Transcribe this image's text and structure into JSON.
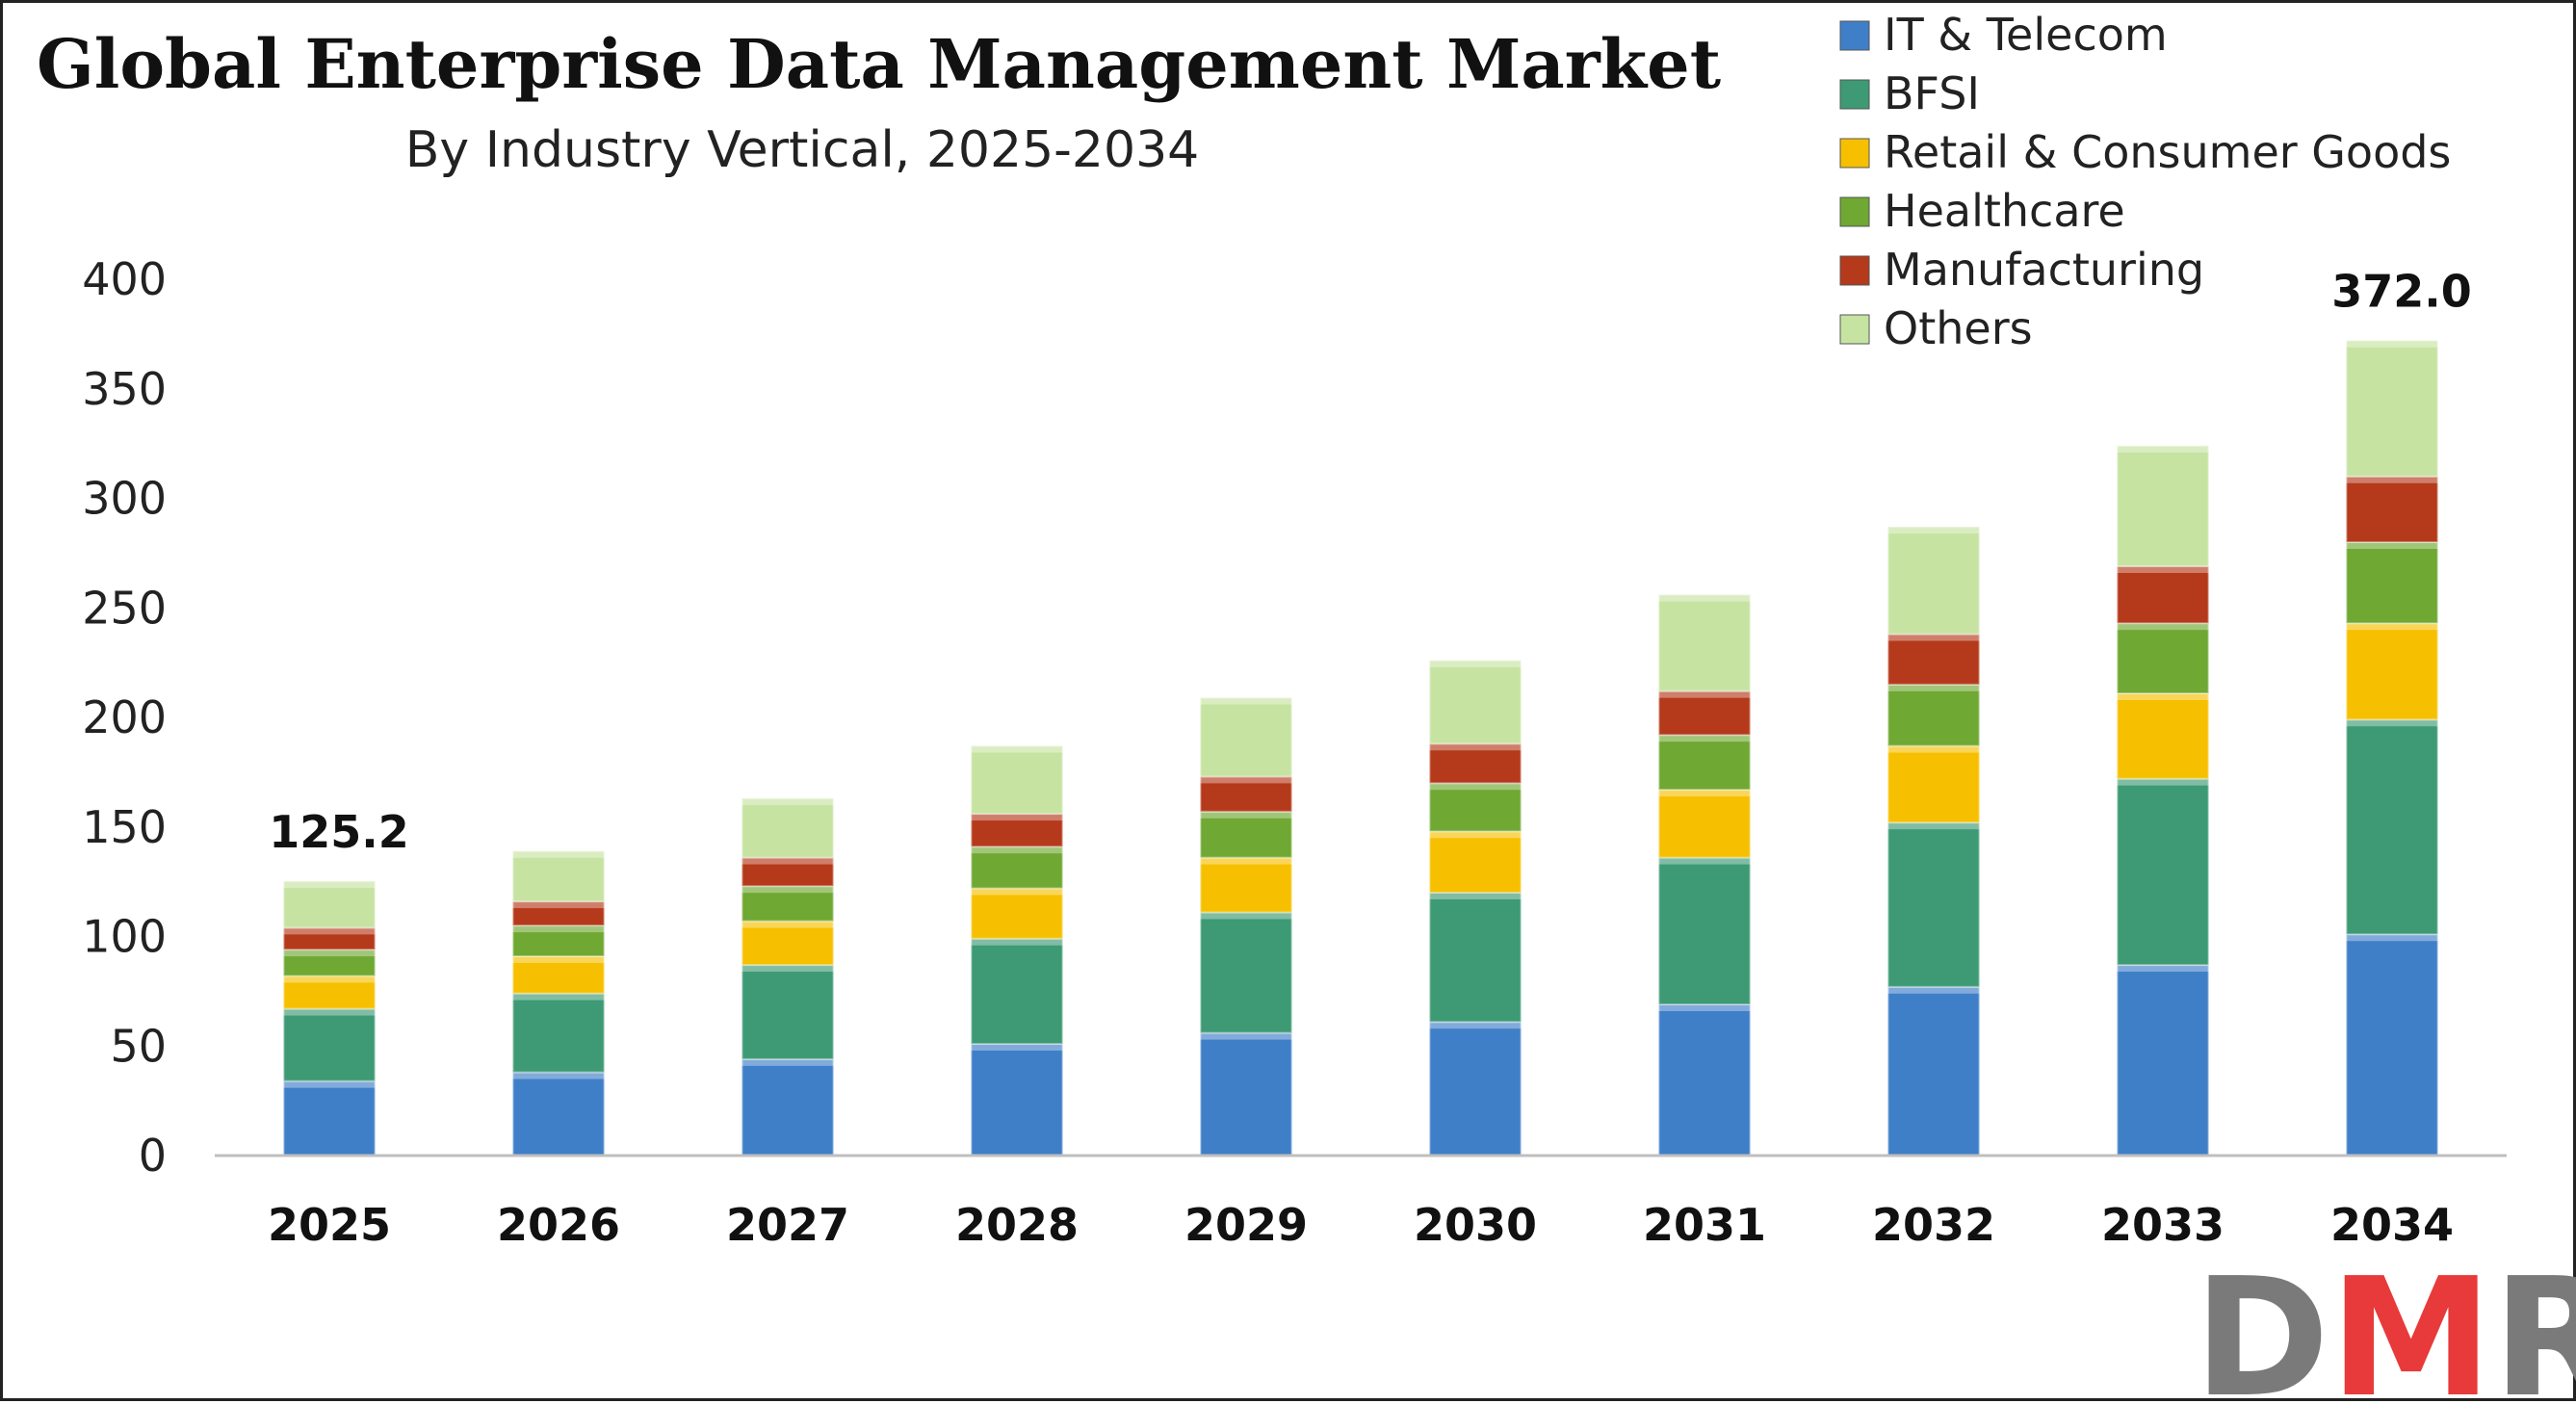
{
  "chart_data": {
    "type": "bar",
    "stacked": true,
    "title": "Global Enterprise Data Management Market",
    "subtitle": "By Industry Vertical, 2025-2034",
    "xlabel": "",
    "ylabel": "",
    "ylim": [
      0,
      400
    ],
    "yticks": [
      "0",
      "50",
      "100",
      "150",
      "200",
      "250",
      "300",
      "350",
      "400"
    ],
    "grid": false,
    "legend_position": "top-right",
    "categories": [
      "2025",
      "2026",
      "2027",
      "2028",
      "2029",
      "2030",
      "2031",
      "2032",
      "2033",
      "2034"
    ],
    "series": [
      {
        "name": "IT & Telecom",
        "color": "#3f7fc8",
        "values": [
          34,
          38,
          44,
          51,
          56,
          61,
          69,
          77,
          87,
          101
        ]
      },
      {
        "name": "BFSI",
        "color": "#3d9a74",
        "values": [
          33,
          36,
          43,
          48,
          55,
          59,
          67,
          75,
          85,
          98
        ]
      },
      {
        "name": "Retail & Consumer Goods",
        "color": "#f6c000",
        "values": [
          15,
          17,
          20,
          23,
          25,
          28,
          31,
          35,
          39,
          44
        ]
      },
      {
        "name": "Healthcare",
        "color": "#6fa832",
        "values": [
          12,
          14,
          16,
          19,
          21,
          22,
          25,
          28,
          32,
          37
        ]
      },
      {
        "name": "Manufacturing",
        "color": "#b5391b",
        "values": [
          10,
          11,
          13,
          15,
          16,
          18,
          20,
          23,
          26,
          30
        ]
      },
      {
        "name": "Others",
        "color": "#c6e3a2",
        "values": [
          21.2,
          23,
          27,
          31,
          36,
          38,
          44,
          49,
          55,
          62
        ]
      }
    ],
    "data_labels": [
      {
        "category": "2025",
        "text": "125.2"
      },
      {
        "category": "2034",
        "text": "372.0"
      }
    ]
  },
  "logo": {
    "text": "DMR",
    "colors": [
      "#7a7a7a",
      "#e83a3a",
      "#7a7a7a"
    ]
  }
}
